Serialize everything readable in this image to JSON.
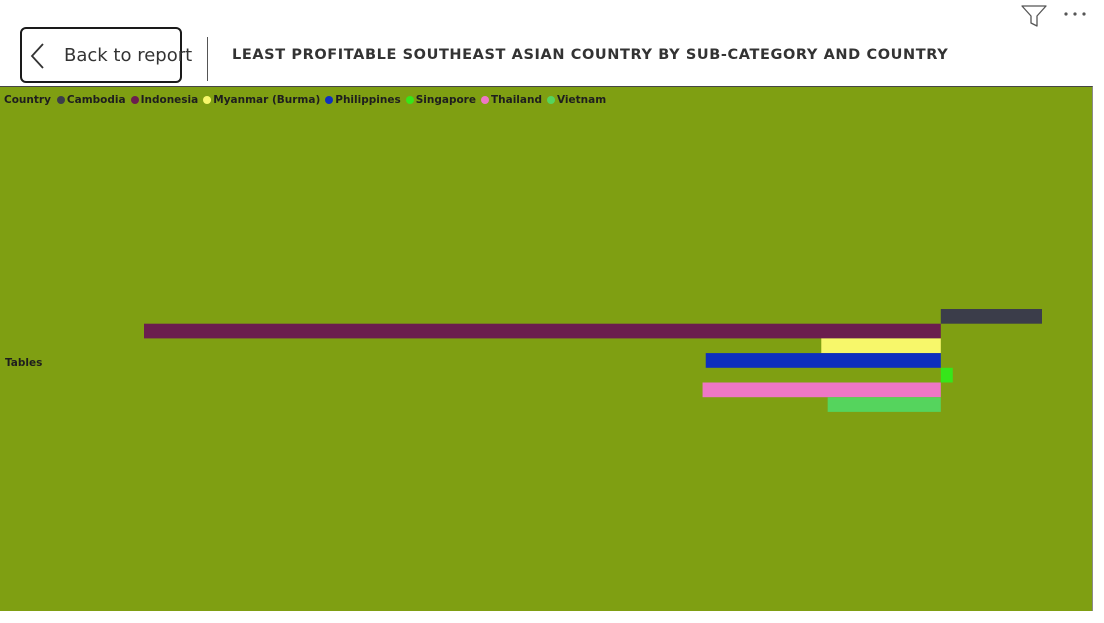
{
  "header": {
    "back_label": "Back to report",
    "title": "LEAST PROFITABLE SOUTHEAST ASIAN COUNTRY BY SUB-CATEGORY AND COUNTRY",
    "filter_icon": "filter-icon",
    "more_icon": "more-options-icon"
  },
  "colors": {
    "plot_background": "#7f9f12"
  },
  "legend": {
    "title": "Country"
  },
  "chart_data": {
    "type": "bar",
    "orientation": "horizontal",
    "categories": [
      "Tables"
    ],
    "title": "LEAST PROFITABLE SOUTHEAST ASIAN COUNTRY BY SUB-CATEGORY AND COUNTRY",
    "legend_title": "Country",
    "legend_position": "top-left",
    "grid": false,
    "xlim": [
      -1000,
      127
    ],
    "series": [
      {
        "name": "Cambodia",
        "color": "#3b3d4a",
        "values": [
          127
        ]
      },
      {
        "name": "Indonesia",
        "color": "#6b1e4e",
        "values": [
          -1000
        ]
      },
      {
        "name": "Myanmar (Burma)",
        "color": "#f7f76a",
        "values": [
          -150
        ]
      },
      {
        "name": "Philippines",
        "color": "#0e2fbf",
        "values": [
          -295
        ]
      },
      {
        "name": "Singapore",
        "color": "#36e61a",
        "values": [
          15
        ]
      },
      {
        "name": "Thailand",
        "color": "#ee77c6",
        "values": [
          -299
        ]
      },
      {
        "name": "Vietnam",
        "color": "#55d45d",
        "values": [
          -142
        ]
      }
    ]
  }
}
